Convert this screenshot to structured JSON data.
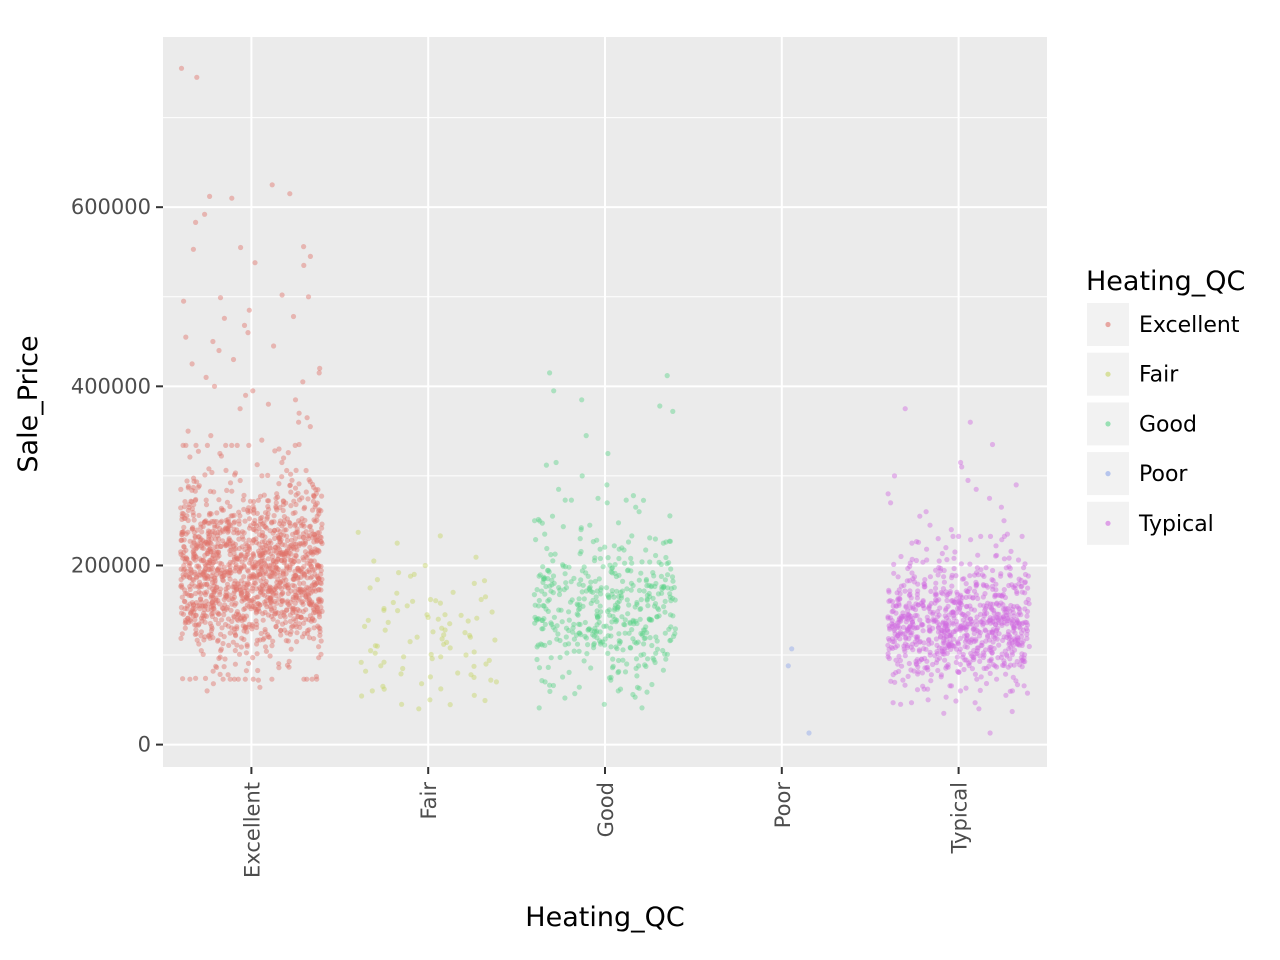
{
  "chart_data": {
    "type": "scatter",
    "subtype": "jitter",
    "title": "",
    "xlabel": "Heating_QC",
    "ylabel": "Sale_Price",
    "categories": [
      "Excellent",
      "Fair",
      "Good",
      "Poor",
      "Typical"
    ],
    "y_ticks": [
      0,
      200000,
      400000,
      600000
    ],
    "y_tick_labels": [
      "0",
      "200000",
      "400000",
      "600000"
    ],
    "ylim": [
      -25000,
      790000
    ],
    "grid": true,
    "panel_background": "#ebebeb",
    "legend": {
      "title": "Heating_QC",
      "position": "right",
      "entries": [
        "Excellent",
        "Fair",
        "Good",
        "Poor",
        "Typical"
      ]
    },
    "colors": {
      "Excellent": "#e0736a",
      "Fair": "#c6d466",
      "Good": "#5ed38a",
      "Poor": "#8ea6ea",
      "Typical": "#d06ae0"
    },
    "series": [
      {
        "name": "Excellent",
        "count": 1495,
        "median": 190000,
        "spread": 45000,
        "values": [
          755000,
          745000,
          625000,
          615000,
          612000,
          610000,
          592000,
          583000,
          556000,
          555000,
          553000,
          545000,
          538000,
          535000,
          502000,
          500000,
          499000,
          495000,
          485000,
          478000,
          476000,
          468000,
          460000,
          455000,
          450000,
          445000,
          440000,
          430000,
          425000,
          420000,
          415000,
          410000,
          405000,
          400000,
          395000,
          390000,
          385000,
          380000,
          375000,
          370000,
          365000,
          360000,
          355000,
          350000,
          345000,
          340000,
          335000,
          330000,
          325000,
          320000,
          86000,
          82000,
          78000,
          76000,
          74000,
          72000,
          68000,
          64000,
          60000
        ]
      },
      {
        "name": "Fair",
        "count": 90,
        "median": 115000,
        "spread": 38000,
        "values": [
          237000,
          233000,
          225000,
          205000,
          200000,
          192000,
          190000,
          188000,
          183000,
          180000,
          175000,
          170000,
          165000,
          162000,
          160000,
          158000,
          155000,
          152000,
          150000,
          148000,
          145000,
          142000,
          140000,
          138000,
          135000,
          132000,
          130000,
          128000,
          125000,
          122000,
          120000,
          118000,
          115000,
          112000,
          110000,
          108000,
          105000,
          102000,
          100000,
          98000,
          96000,
          94000,
          92000,
          90000,
          88000,
          85000,
          82000,
          80000,
          78000,
          75000,
          72000,
          70000,
          68000,
          65000,
          62000,
          60000,
          55000,
          50000,
          45000,
          40000
        ]
      },
      {
        "name": "Good",
        "count": 476,
        "median": 145000,
        "spread": 40000,
        "values": [
          415000,
          412000,
          395000,
          385000,
          378000,
          372000,
          345000,
          325000,
          315000,
          312000,
          300000,
          290000,
          285000,
          278000,
          275000,
          270000,
          265000,
          260000,
          255000,
          250000,
          245000,
          240000,
          235000,
          230000,
          225000,
          75000,
          70000,
          66000,
          62000,
          60000,
          57000,
          52000
        ]
      },
      {
        "name": "Poor",
        "count": 3,
        "values": [
          107000,
          88000,
          13000
        ]
      },
      {
        "name": "Typical",
        "count": 864,
        "median": 130000,
        "spread": 32000,
        "values": [
          375000,
          360000,
          335000,
          315000,
          310000,
          300000,
          295000,
          290000,
          285000,
          280000,
          275000,
          270000,
          265000,
          260000,
          255000,
          250000,
          245000,
          240000,
          235000,
          230000,
          225000,
          220000,
          215000,
          210000,
          60000,
          55000,
          50000,
          45000,
          40000,
          37000,
          35000,
          13000
        ]
      }
    ]
  }
}
